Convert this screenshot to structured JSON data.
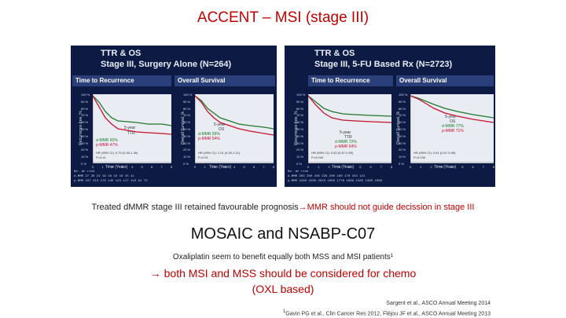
{
  "slide": {
    "title": "ACCENT – MSI (stage III)"
  },
  "panels": [
    {
      "header_line1": "TTR & OS",
      "header_line2": "Stage III, Surgery Alone (N=264)",
      "sub_left": "Time to Recurrence",
      "sub_right": "Overall Survival",
      "left_chart": {
        "annotation_1": "5-year",
        "annotation_2": "TTR",
        "legend_a": "d-MMR 60%",
        "legend_b": "p-MMR 47%",
        "hr": "HR (95% CI): 0.79 (0.45-1.39)",
        "p": "P=0.41",
        "xlabel": "Time (Years)"
      },
      "right_chart": {
        "annotation_1": "5-year",
        "annotation_2": "OS",
        "legend_a": "d-MMR 59%",
        "legend_b": "p-MMR 54%",
        "hr": "HR (95% CI): 1.01 (0.49-1.21)",
        "p": "P=0.51",
        "xlabel": "Time (Years)"
      },
      "risk_label": "No. at risk",
      "risk_dmmr": "d-MMR 27  26  22  19  18  16  16  15  11",
      "risk_pmmr": "p-MMR 237 213 178 145 124 117 110  91  72"
    },
    {
      "header_line1": "TTR & OS",
      "header_line2": "Stage III, 5-FU Based Rx (N=2723)",
      "sub_left": "Time to Recurrence",
      "sub_right": "Overall Survival",
      "left_chart": {
        "annotation_1": "5-year",
        "annotation_2": "TTR",
        "legend_a": "d-MMR 72%",
        "legend_b": "p-MMR 64%",
        "hr": "HR (95% CI): 0.82 (0.67-0.99)",
        "p": "P=0.040",
        "xlabel": "Time (Years)"
      },
      "right_chart": {
        "annotation_1": "5-year",
        "annotation_2": "OS",
        "legend_a": "d-MMR 77%",
        "legend_b": "p-MMR 71%",
        "hr": "HR (95% CI): 0.81 (0.67-0.99)",
        "p": "P=0.039",
        "xlabel": "Time (Years)"
      },
      "risk_label": "No. at risk",
      "risk_dmmr": "d-MMR 283 260 246 229 200 190 170 154 121",
      "risk_pmmr": "p-MMR 2440 2230 2023 1903 1776 1669 1585 1390 1066"
    }
  ],
  "ticks_y": [
    "100 %",
    "90 %",
    "80 %",
    "70 %",
    "60 %",
    "50 %",
    "40 %",
    "30 %",
    "20 %",
    "10 %",
    "0 %"
  ],
  "ticks_x": [
    "0",
    "1",
    "2",
    "3",
    "4",
    "5",
    "6",
    "7",
    "8"
  ],
  "y_axis_title_ttr": "Recurrence-free, %",
  "y_axis_title_os": "Overall Survival, %",
  "text": {
    "treated_prefix": "Treated dMMR  stage III retained favourable prognosis",
    "arrow": "→",
    "treated_suffix": "MMR should not guide decission in stage III",
    "mosaic": "MOSAIC and NSABP-C07",
    "oxali": "Oxaliplatin seem to benefit equally  both MSS and MSI patients¹",
    "chemo": "→ both MSI and MSS should be considered for chemo",
    "oxl": "(OXL based)",
    "ref1": "Sargent et al., ASCO Annual Meeting 2014",
    "ref2_sup": "1",
    "ref2": "Gavin PG et al., Clin Cancer Res 2012, Fléjou JF et al., ASCO Annual Meeting 2013"
  },
  "colors": {
    "title_red": "#c00000",
    "panel_bg": "#0d1b44",
    "curve_dmmr": "#1e7a2a",
    "curve_pmmr": "#c8102e"
  }
}
